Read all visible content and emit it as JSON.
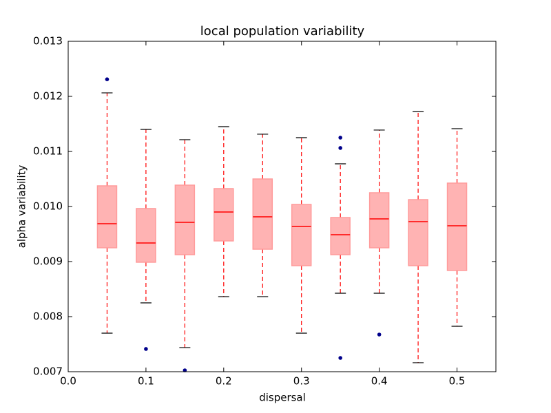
{
  "chart_data": {
    "type": "box",
    "title": "local population variability",
    "xlabel": "dispersal",
    "ylabel": "alpha variability",
    "xlim": [
      0,
      0.55
    ],
    "ylim": [
      0.007,
      0.013
    ],
    "xticks": [
      {
        "value": 0,
        "label": "0.0"
      },
      0.1,
      0.2,
      0.3,
      0.4,
      0.5
    ],
    "yticks": [
      0.007,
      0.008,
      0.009,
      {
        "value": 0.01,
        "label": "0.010"
      },
      0.011,
      0.012,
      0.013
    ],
    "box_color": "#ffb3b3",
    "box_edge_color": "#ff9b9b",
    "median_color": "#ff0000",
    "whisker_color": "#ff0000",
    "cap_color": "#000000",
    "flier_color": "#00008b",
    "boxes": [
      {
        "x": 0.05,
        "whislo": 0.0077,
        "q1": 0.00925,
        "median": 0.009688,
        "q3": 0.010375,
        "whishi": 0.012063,
        "fliers": [
          0.01231
        ]
      },
      {
        "x": 0.1,
        "whislo": 0.00825,
        "q1": 0.008988,
        "median": 0.009338,
        "q3": 0.009963,
        "whishi": 0.0114,
        "fliers": [
          0.007413
        ]
      },
      {
        "x": 0.15,
        "whislo": 0.007438,
        "q1": 0.009125,
        "median": 0.009713,
        "q3": 0.010388,
        "whishi": 0.011213,
        "fliers": [
          0.007025
        ]
      },
      {
        "x": 0.2,
        "whislo": 0.008363,
        "q1": 0.009375,
        "median": 0.0099,
        "q3": 0.010325,
        "whishi": 0.01145,
        "fliers": []
      },
      {
        "x": 0.25,
        "whislo": 0.008363,
        "q1": 0.009225,
        "median": 0.009813,
        "q3": 0.0105,
        "whishi": 0.011313,
        "fliers": []
      },
      {
        "x": 0.3,
        "whislo": 0.0077,
        "q1": 0.008925,
        "median": 0.009638,
        "q3": 0.010038,
        "whishi": 0.01125,
        "fliers": []
      },
      {
        "x": 0.35,
        "whislo": 0.008425,
        "q1": 0.009125,
        "median": 0.009488,
        "q3": 0.0098,
        "whishi": 0.010775,
        "fliers": [
          0.01125,
          0.011063,
          0.00725
        ]
      },
      {
        "x": 0.4,
        "whislo": 0.008425,
        "q1": 0.00925,
        "median": 0.009775,
        "q3": 0.01025,
        "whishi": 0.011388,
        "fliers": [
          0.007675
        ]
      },
      {
        "x": 0.45,
        "whislo": 0.007163,
        "q1": 0.008925,
        "median": 0.009725,
        "q3": 0.010125,
        "whishi": 0.011725,
        "fliers": []
      },
      {
        "x": 0.5,
        "whislo": 0.007825,
        "q1": 0.008838,
        "median": 0.00965,
        "q3": 0.010425,
        "whishi": 0.011413,
        "fliers": []
      }
    ]
  }
}
